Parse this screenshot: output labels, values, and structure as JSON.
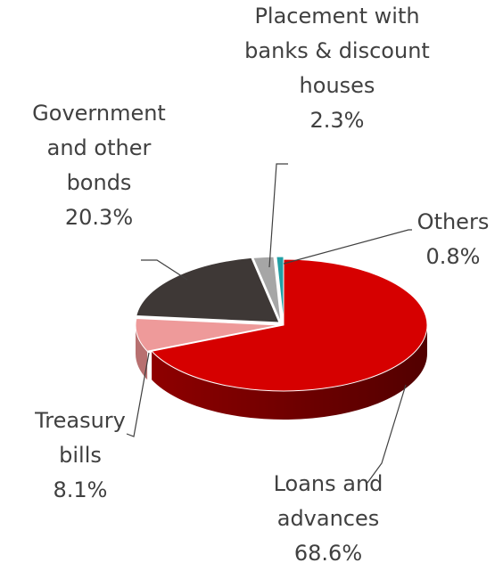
{
  "chart_data": {
    "type": "pie",
    "style": "3d-exploded",
    "legend": "none",
    "slices": [
      {
        "name": "Loans and advances",
        "name_lines": [
          "Loans and",
          "advances"
        ],
        "value": 68.6,
        "value_label": "68.6%",
        "color": "#D60000",
        "side_color": "#8E0000",
        "dark_side_color": "#520000"
      },
      {
        "name": "Treasury bills",
        "name_lines": [
          "Treasury",
          "bills"
        ],
        "value": 8.1,
        "value_label": "8.1%",
        "color": "#EE9A9A",
        "side_color": "#B87070"
      },
      {
        "name": "Government and other bonds",
        "name_lines": [
          "Government",
          "and other",
          "bonds"
        ],
        "value": 20.3,
        "value_label": "20.3%",
        "color": "#3E3836",
        "side_color": "#292423"
      },
      {
        "name": "Placement with banks & discount houses",
        "name_lines": [
          "Placement with",
          "banks & discount",
          "houses"
        ],
        "value": 2.3,
        "value_label": "2.3%",
        "color": "#A6A6A6",
        "side_color": "#7A7A7A"
      },
      {
        "name": "Others",
        "name_lines": [
          "Others"
        ],
        "value": 0.8,
        "value_label": "0.8%",
        "color": "#21A0A5",
        "side_color": "#157075"
      }
    ]
  }
}
